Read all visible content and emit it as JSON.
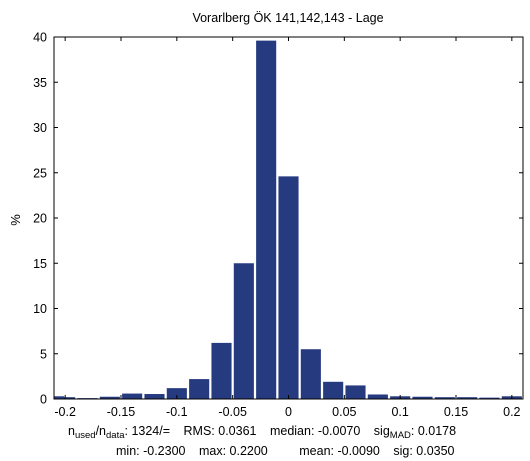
{
  "chart_data": {
    "type": "bar",
    "title": "Vorarlberg ÖK 141,142,143 - Lage",
    "xlabel": "",
    "ylabel": "%",
    "xlim": [
      -0.21,
      0.21
    ],
    "ylim": [
      0,
      40
    ],
    "xticks": [
      -0.2,
      -0.15,
      -0.1,
      -0.05,
      0,
      0.05,
      0.1,
      0.15,
      0.2
    ],
    "xtick_labels": [
      "-0.2",
      "-0.15",
      "-0.1",
      "-0.05",
      "0",
      "0.05",
      "0.1",
      "0.15",
      "0.2"
    ],
    "yticks": [
      0,
      5,
      10,
      15,
      20,
      25,
      30,
      35,
      40
    ],
    "ytick_labels": [
      "0",
      "5",
      "10",
      "15",
      "20",
      "25",
      "30",
      "35",
      "40"
    ],
    "bar_width": 0.018,
    "x": [
      -0.21,
      -0.2,
      -0.18,
      -0.16,
      -0.14,
      -0.12,
      -0.1,
      -0.08,
      -0.06,
      -0.04,
      -0.02,
      0,
      0.02,
      0.04,
      0.06,
      0.08,
      0.1,
      0.12,
      0.14,
      0.16,
      0.18,
      0.2
    ],
    "values": [
      0.3,
      0.2,
      0.1,
      0.25,
      0.6,
      0.55,
      1.2,
      2.2,
      6.2,
      15.0,
      39.6,
      24.6,
      5.5,
      1.9,
      1.5,
      0.5,
      0.3,
      0.25,
      0.2,
      0.2,
      0.15,
      0.3
    ],
    "color": "#263a80",
    "grid": false
  },
  "stats": {
    "n_label": "n",
    "n_used_sub": "used",
    "n_sep": "/n",
    "n_data_sub": "data",
    "n_value": ": 1324/=",
    "rms": "RMS: 0.0361",
    "median": "median: -0.0070",
    "sig_label": "sig",
    "sig_mad_sub": "MAD",
    "sig_mad_value": ": 0.0178",
    "min": "min: -0.2300",
    "max": "max: 0.2200",
    "mean": "mean: -0.0090",
    "sig": "sig: 0.0350"
  }
}
